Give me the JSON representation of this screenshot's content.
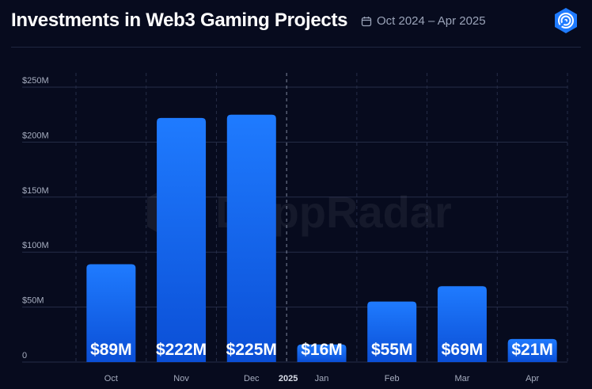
{
  "header": {
    "title": "Investments in Web3 Gaming Projects",
    "date_range": "Oct 2024 – Apr 2025",
    "calendar_icon": "calendar-icon",
    "logo_icon": "dappradar-logo-icon"
  },
  "watermark": "DappRadar",
  "colors": {
    "background": "#070b1e",
    "bar_top": "#1f7bff",
    "bar_bottom": "#0b4fd6",
    "logo": "#1f7bff",
    "axis_text": "#a6adbf",
    "grid": "#262d48"
  },
  "chart_data": {
    "type": "bar",
    "categories": [
      "Oct",
      "Nov",
      "Dec",
      "Jan",
      "Feb",
      "Mar",
      "Apr"
    ],
    "values": [
      89,
      222,
      225,
      16,
      55,
      69,
      21
    ],
    "value_labels": [
      "$89M",
      "$222M",
      "$225M",
      "$16M",
      "$55M",
      "$69M",
      "$21M"
    ],
    "year_marker": {
      "label": "2025",
      "before_category": "Jan"
    },
    "yticks": [
      0,
      50,
      100,
      150,
      200,
      250
    ],
    "ytick_labels": [
      "0",
      "$50M",
      "$100M",
      "$150M",
      "$200M",
      "$250M"
    ],
    "ylim": [
      0,
      250
    ],
    "title": "Investments in Web3 Gaming Projects",
    "xlabel": "",
    "ylabel": "",
    "grid": true
  }
}
